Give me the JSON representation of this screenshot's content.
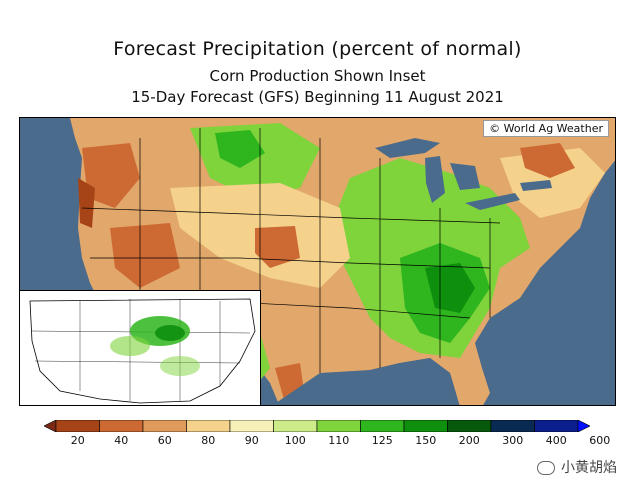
{
  "titles": {
    "line1": "Forecast Precipitation (percent of normal)",
    "line2": "Corn Production Shown Inset",
    "line3": "15-Day Forecast (GFS) Beginning 11 August 2021"
  },
  "map": {
    "credit": "© World Ag Weather",
    "region": "Contiguous United States",
    "inset_subject": "Corn Production"
  },
  "legend": {
    "labels": [
      "20",
      "40",
      "60",
      "80",
      "90",
      "100",
      "110",
      "125",
      "150",
      "200",
      "300",
      "400",
      "600"
    ],
    "colors": [
      "#7a2a14",
      "#a64418",
      "#cd6a33",
      "#e09a5c",
      "#f5d28c",
      "#f7f0b8",
      "#cdeb88",
      "#7fd43c",
      "#2fb51e",
      "#0e8f0e",
      "#06580a",
      "#092a52",
      "#0a1e8c",
      "#0010ff"
    ]
  },
  "watermark": {
    "text": "小黄胡焰"
  }
}
